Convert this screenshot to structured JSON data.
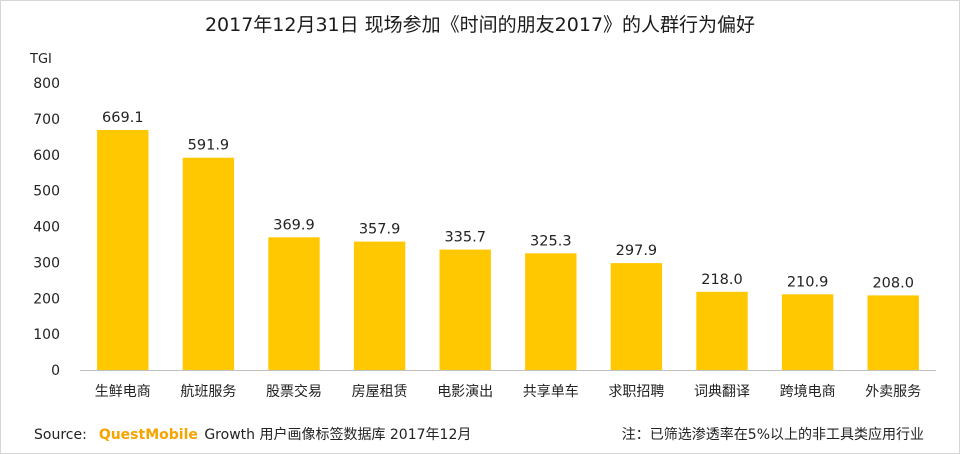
{
  "title": "2017年12月31日 现场参加《时间的朋友2017》的人群行为偏好",
  "footer": {
    "source_label": "Source:",
    "brand": "QuestMobile",
    "source_text": "Growth 用户画像标签数据库 2017年12月",
    "note": "注：已筛选渗透率在5%以上的非工具类应用行业"
  },
  "colors": {
    "bar": "#FFC800",
    "axis": "#bfbfbf",
    "brand": "#F5A400"
  },
  "chart_data": {
    "type": "bar",
    "title": "2017年12月31日 现场参加《时间的朋友2017》的人群行为偏好",
    "ylabel": "TGI",
    "xlabel": "",
    "ylim": [
      0,
      800
    ],
    "yticks": [
      0,
      100,
      200,
      300,
      400,
      500,
      600,
      700,
      800
    ],
    "grid": false,
    "categories": [
      "生鲜电商",
      "航班服务",
      "股票交易",
      "房屋租赁",
      "电影演出",
      "共享单车",
      "求职招聘",
      "词典翻译",
      "跨境电商",
      "外卖服务"
    ],
    "values": [
      669.1,
      591.9,
      369.9,
      357.9,
      335.7,
      325.3,
      297.9,
      218.0,
      210.9,
      208.0
    ],
    "data_labels": [
      "669.1",
      "591.9",
      "369.9",
      "357.9",
      "335.7",
      "325.3",
      "297.9",
      "218.0",
      "210.9",
      "208.0"
    ]
  }
}
